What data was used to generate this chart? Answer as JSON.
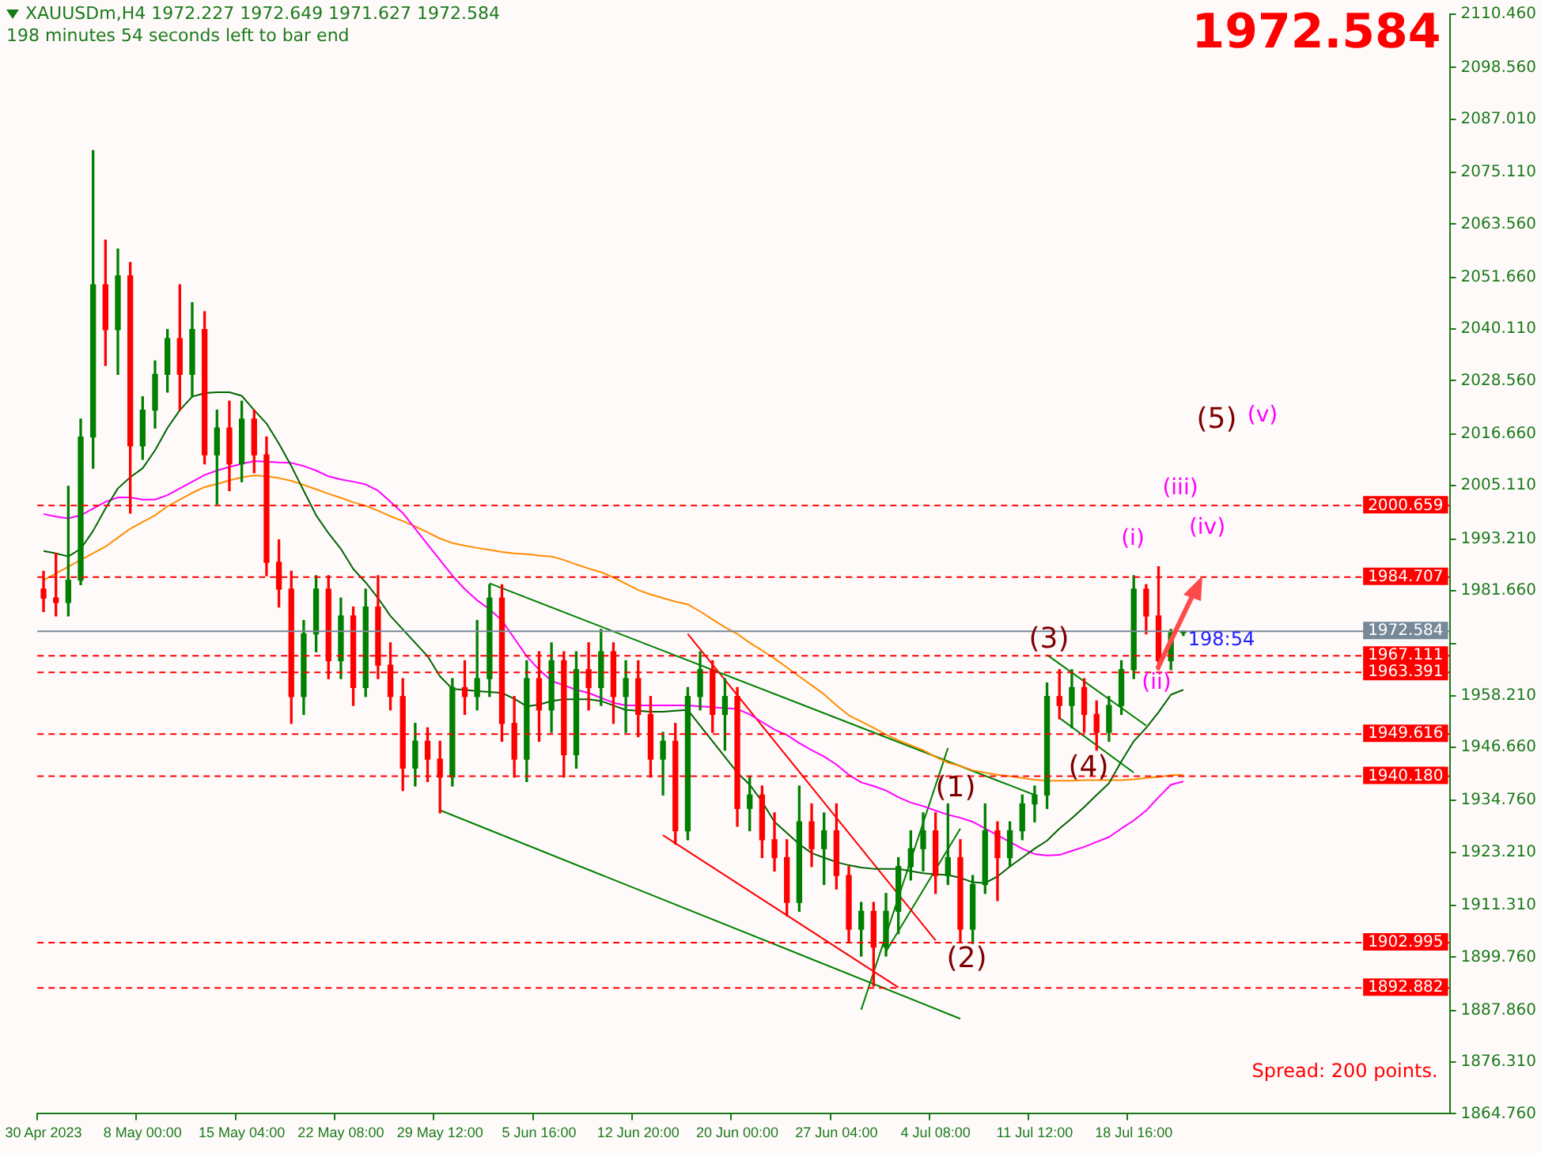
{
  "chart_data": {
    "type": "candlestick",
    "title": "XAUUSDm,H4  1972.227 1972.649 1971.627 1972.584",
    "subtitle": "198 minutes 54 seconds left to bar end",
    "categories": [
      "30 Apr 2023",
      null,
      null,
      null,
      null,
      null,
      null,
      null,
      "8 May 00:00",
      null,
      null,
      null,
      null,
      null,
      null,
      null,
      "15 May 04:00",
      null,
      null,
      null,
      null,
      null,
      null,
      null,
      "22 May 08:00",
      null,
      null,
      null,
      null,
      null,
      null,
      null,
      "29 May 12:00",
      null,
      null,
      null,
      null,
      null,
      null,
      null,
      "5 Jun 16:00",
      null,
      null,
      null,
      null,
      null,
      null,
      null,
      "12 Jun 20:00",
      null,
      null,
      null,
      null,
      null,
      null,
      null,
      "20 Jun 00:00",
      null,
      null,
      null,
      null,
      null,
      null,
      null,
      "27 Jun 04:00",
      null,
      null,
      null,
      null,
      null,
      null,
      null,
      "4 Jul 08:00",
      null,
      null,
      null,
      null,
      null,
      null,
      null,
      "11 Jul 12:00",
      null,
      null,
      null,
      null,
      null,
      null,
      null,
      "18 Jul 16:00",
      null,
      null,
      null,
      null,
      null,
      null,
      null,
      null,
      null,
      null,
      null,
      null,
      null,
      null,
      null,
      null,
      null,
      null,
      null,
      null,
      null,
      null,
      null,
      null,
      null
    ],
    "ohlc": [
      [
        1982,
        1986,
        1977,
        1980
      ],
      [
        1980,
        1990,
        1976,
        1979
      ],
      [
        1979,
        2005,
        1976,
        1984
      ],
      [
        1984,
        2020,
        1983,
        2016
      ],
      [
        2016,
        2080,
        2009,
        2050
      ],
      [
        2050,
        2060,
        2032,
        2040
      ],
      [
        2040,
        2058,
        2030,
        2052
      ],
      [
        2052,
        2055,
        1999,
        2014
      ],
      [
        2014,
        2025,
        2011,
        2022
      ],
      [
        2022,
        2033,
        2018,
        2030
      ],
      [
        2030,
        2040,
        2026,
        2038
      ],
      [
        2038,
        2050,
        2022,
        2030
      ],
      [
        2030,
        2046,
        2025,
        2040
      ],
      [
        2040,
        2044,
        2010,
        2012
      ],
      [
        2012,
        2022,
        2001,
        2018
      ],
      [
        2018,
        2024,
        2004,
        2010
      ],
      [
        2010,
        2024,
        2006,
        2020
      ],
      [
        2020,
        2022,
        2008,
        2012
      ],
      [
        2012,
        2016,
        1985,
        1988
      ],
      [
        1988,
        1993,
        1978,
        1982
      ],
      [
        1982,
        1986,
        1952,
        1958
      ],
      [
        1958,
        1975,
        1954,
        1972
      ],
      [
        1972,
        1985,
        1968,
        1982
      ],
      [
        1982,
        1985,
        1962,
        1966
      ],
      [
        1966,
        1980,
        1962,
        1976
      ],
      [
        1976,
        1978,
        1956,
        1960
      ],
      [
        1960,
        1982,
        1958,
        1978
      ],
      [
        1978,
        1985,
        1962,
        1965
      ],
      [
        1965,
        1970,
        1955,
        1958
      ],
      [
        1958,
        1962,
        1937,
        1942
      ],
      [
        1942,
        1952,
        1938,
        1948
      ],
      [
        1948,
        1951,
        1939,
        1944
      ],
      [
        1944,
        1948,
        1932,
        1940
      ],
      [
        1940,
        1962,
        1938,
        1960
      ],
      [
        1960,
        1966,
        1954,
        1958
      ],
      [
        1958,
        1975,
        1955,
        1962
      ],
      [
        1962,
        1983,
        1958,
        1980
      ],
      [
        1980,
        1983,
        1948,
        1952
      ],
      [
        1952,
        1958,
        1940,
        1944
      ],
      [
        1944,
        1966,
        1939,
        1962
      ],
      [
        1962,
        1968,
        1948,
        1955
      ],
      [
        1955,
        1970,
        1950,
        1966
      ],
      [
        1966,
        1968,
        1940,
        1945
      ],
      [
        1945,
        1968,
        1942,
        1964
      ],
      [
        1964,
        1970,
        1955,
        1960
      ],
      [
        1960,
        1973,
        1956,
        1968
      ],
      [
        1968,
        1970,
        1952,
        1958
      ],
      [
        1958,
        1966,
        1950,
        1962
      ],
      [
        1962,
        1966,
        1949,
        1954
      ],
      [
        1954,
        1958,
        1940,
        1944
      ],
      [
        1944,
        1950,
        1936,
        1948
      ],
      [
        1948,
        1952,
        1925,
        1928
      ],
      [
        1928,
        1960,
        1926,
        1958
      ],
      [
        1958,
        1968,
        1955,
        1964
      ],
      [
        1964,
        1966,
        1950,
        1954
      ],
      [
        1954,
        1962,
        1946,
        1958
      ],
      [
        1958,
        1960,
        1929,
        1933
      ],
      [
        1933,
        1940,
        1928,
        1936
      ],
      [
        1936,
        1938,
        1922,
        1926
      ],
      [
        1926,
        1932,
        1919,
        1922
      ],
      [
        1922,
        1926,
        1909,
        1912
      ],
      [
        1912,
        1938,
        1910,
        1930
      ],
      [
        1930,
        1934,
        1920,
        1924
      ],
      [
        1924,
        1932,
        1916,
        1928
      ],
      [
        1928,
        1934,
        1915,
        1918
      ],
      [
        1918,
        1920,
        1903,
        1906
      ],
      [
        1906,
        1912,
        1900,
        1910
      ],
      [
        1910,
        1912,
        1893.3,
        1902
      ],
      [
        1902,
        1914,
        1900,
        1910
      ],
      [
        1910,
        1922,
        1905,
        1920
      ],
      [
        1920,
        1928,
        1917,
        1924
      ],
      [
        1924,
        1932,
        1919,
        1928
      ],
      [
        1928,
        1932,
        1914,
        1918
      ],
      [
        1918,
        1934,
        1916,
        1922
      ],
      [
        1922,
        1926,
        1903,
        1906
      ],
      [
        1906,
        1918,
        1902.8,
        1916
      ],
      [
        1916,
        1934,
        1914,
        1928
      ],
      [
        1928,
        1930,
        1912.4,
        1922
      ],
      [
        1922,
        1930,
        1920,
        1928
      ],
      [
        1928,
        1936,
        1926,
        1934
      ],
      [
        1934,
        1938,
        1930,
        1936
      ],
      [
        1936,
        1961,
        1933,
        1958
      ],
      [
        1958,
        1964,
        1953,
        1956
      ],
      [
        1956,
        1964,
        1951,
        1960
      ],
      [
        1960,
        1962,
        1950,
        1954
      ],
      [
        1954,
        1957,
        1946,
        1950
      ],
      [
        1950,
        1958,
        1948,
        1956
      ],
      [
        1956,
        1966,
        1954,
        1964
      ],
      [
        1964,
        1985,
        1962,
        1982
      ],
      [
        1982,
        1983,
        1972,
        1976
      ],
      [
        1976,
        1987,
        1964,
        1966
      ],
      [
        1966,
        1973,
        1964,
        1972.227
      ],
      [
        1972.227,
        1972.649,
        1971.627,
        1972.584
      ],
      null,
      null,
      null,
      null,
      null,
      null,
      null,
      null,
      null,
      null,
      null,
      null,
      null,
      null,
      null,
      null,
      null,
      null,
      null,
      null,
      null
    ],
    "colors": [
      "#ff0000",
      "#ff0000",
      "#008000",
      "#008000",
      "#008000",
      "#ff0000",
      "#008000",
      "#ff0000",
      "#008000",
      "#008000",
      "#008000",
      "#ff0000",
      "#008000",
      "#ff0000",
      "#008000",
      "#ff0000",
      "#008000",
      "#ff0000",
      "#ff0000",
      "#ff0000",
      "#ff0000",
      "#008000",
      "#008000",
      "#ff0000",
      "#008000",
      "#ff0000",
      "#008000",
      "#ff0000",
      "#ff0000",
      "#ff0000",
      "#008000",
      "#ff0000",
      "#ff0000",
      "#008000",
      "#ff0000",
      "#008000",
      "#008000",
      "#ff0000",
      "#ff0000",
      "#008000",
      "#ff0000",
      "#008000",
      "#ff0000",
      "#008000",
      "#ff0000",
      "#008000",
      "#ff0000",
      "#008000",
      "#ff0000",
      "#ff0000",
      "#008000",
      "#ff0000",
      "#008000",
      "#008000",
      "#ff0000",
      "#008000",
      "#ff0000",
      "#008000",
      "#ff0000",
      "#ff0000",
      "#ff0000",
      "#008000",
      "#ff0000",
      "#008000",
      "#ff0000",
      "#ff0000",
      "#008000",
      "#ff0000",
      "#008000",
      "#008000",
      "#008000",
      "#008000",
      "#ff0000",
      "#008000",
      "#ff0000",
      "#008000",
      "#008000",
      "#ff0000",
      "#008000",
      "#008000",
      "#008000",
      "#008000",
      "#ff0000",
      "#008000",
      "#ff0000",
      "#ff0000",
      "#008000",
      "#008000",
      "#008000",
      "#ff0000",
      "#ff0000",
      "#008000",
      "#008000",
      null,
      null,
      null,
      null,
      null,
      null,
      null,
      null,
      null,
      null,
      null,
      null,
      null,
      null,
      null,
      null,
      null,
      null,
      null,
      null,
      null
    ],
    "series": [
      {
        "type": "line",
        "color": "#006400",
        "values": [
          1990.5,
          1990,
          1989.3,
          1991,
          1995,
          2000,
          2004.5,
          2007,
          2009,
          2013,
          2018,
          2022,
          2025,
          2025.8,
          2026,
          2026,
          2025.2,
          2022,
          2019,
          2014.5,
          2009.5,
          2004,
          1998.5,
          1994.5,
          1991,
          1986.5,
          1983.5,
          1980,
          1976,
          1973,
          1970,
          1967,
          1962.5,
          1959.7,
          1959.5,
          1959.2,
          1959,
          1958.8,
          1957.5,
          1955.8,
          1956.2,
          1957,
          1957.4,
          1957.4,
          1957.4,
          1957,
          1956,
          1955,
          1954.8,
          1954.6,
          1954.6,
          1954.8,
          1955,
          1951.5,
          1948,
          1944.5,
          1941,
          1938.3,
          1934.5,
          1930,
          1927.5,
          1925,
          1923,
          1922,
          1921,
          1920.3,
          1919.8,
          1919.5,
          1919.5,
          1919.5,
          1919,
          1918.5,
          1918.3,
          1918.1,
          1917.5,
          1916.5,
          1916.3,
          1917.8,
          1920,
          1922,
          1924,
          1925.8,
          1928.5,
          1930.8,
          1933.3,
          1936,
          1938.6,
          1943.5,
          1948,
          1951,
          1954.5,
          1958.4,
          1959.5,
          null,
          null,
          null,
          null,
          null,
          null,
          null,
          null,
          null,
          null,
          null,
          null,
          null,
          null,
          null,
          null,
          null,
          null,
          null,
          null,
          null
        ]
      },
      {
        "type": "line",
        "color": "#ff00ff",
        "values": [
          1998.8,
          1998.2,
          1997.8,
          1998.5,
          2000,
          2001.5,
          2002.5,
          2002.5,
          2002,
          2002,
          2003,
          2004.5,
          2006,
          2007.5,
          2008.5,
          2009.3,
          2010,
          2010.6,
          2010.5,
          2010.3,
          2010.2,
          2009.5,
          2008.5,
          2007.2,
          2006.5,
          2006,
          2005.4,
          2004,
          2001.5,
          1999,
          1995.5,
          1992,
          1988.5,
          1985,
          1982,
          1979.5,
          1977.5,
          1975,
          1971,
          1967,
          1964,
          1961.5,
          1960.5,
          1959.5,
          1958.8,
          1957.7,
          1956.6,
          1956,
          1956,
          1956,
          1956,
          1956,
          1956,
          1955.8,
          1955.6,
          1955.4,
          1955.2,
          1954,
          1952.3,
          1950.6,
          1949.4,
          1947.6,
          1946,
          1944.6,
          1942.8,
          1940.5,
          1938.8,
          1938,
          1937,
          1935.5,
          1934.3,
          1933.5,
          1932.5,
          1931.6,
          1930.9,
          1930,
          1928.5,
          1927,
          1925.5,
          1924,
          1922.8,
          1922.5,
          1922.6,
          1923.5,
          1924.4,
          1925.5,
          1926.6,
          1928.5,
          1930.3,
          1932.5,
          1935.5,
          1938.3,
          1939,
          null,
          null,
          null,
          null,
          null,
          null,
          null,
          null,
          null,
          null,
          null,
          null,
          null,
          null,
          null,
          null,
          null,
          null,
          null,
          null,
          null
        ]
      },
      {
        "type": "line",
        "color": "#ff8c00",
        "values": [
          1984,
          1985.5,
          1987,
          1988.5,
          1990,
          1991.5,
          1993.5,
          1995.5,
          1997,
          1998.5,
          2000.5,
          2002,
          2003.5,
          2004.8,
          2005.5,
          2006.3,
          2007,
          2007.4,
          2007.2,
          2006.8,
          2006.2,
          2005.3,
          2004.3,
          2003.3,
          2002.4,
          2001.4,
          2000.6,
          1999.5,
          1998.3,
          1997.2,
          1996,
          1994.7,
          1993.3,
          1992.3,
          1991.7,
          1991.2,
          1990.8,
          1990.3,
          1990,
          1989.8,
          1989.5,
          1989.3,
          1988.5,
          1987.5,
          1986.6,
          1985.8,
          1984.6,
          1983.2,
          1981.8,
          1980.8,
          1980,
          1979.2,
          1978.6,
          1977,
          1975.2,
          1973.5,
          1972,
          1970,
          1968.3,
          1966.5,
          1964.5,
          1962.5,
          1960.5,
          1958.5,
          1956,
          1953.8,
          1952.4,
          1951,
          1949.5,
          1948.2,
          1947.1,
          1946,
          1944.5,
          1943.2,
          1942.5,
          1941.5,
          1941,
          1940.5,
          1940.2,
          1939.8,
          1939.4,
          1939.2,
          1939.2,
          1939.2,
          1939.3,
          1939.3,
          1939.3,
          1939.3,
          1939.5,
          1939.8,
          1940,
          1940.4,
          1940.5,
          null,
          null,
          null,
          null,
          null,
          null,
          null,
          null,
          null,
          null,
          null,
          null,
          null,
          null,
          null,
          null,
          null,
          null,
          null,
          null,
          null
        ]
      },
      {
        "type": "line",
        "color": "#008000",
        "values": [
          null,
          null,
          null,
          null,
          null,
          null,
          null,
          null,
          null,
          null,
          null,
          null,
          null,
          null,
          null,
          null,
          null,
          null,
          null,
          null,
          null,
          null,
          null,
          null,
          null,
          null,
          null,
          null,
          null,
          null,
          null,
          null,
          null,
          null,
          null,
          null,
          1983.3,
          null,
          null,
          null,
          null,
          null,
          null,
          null,
          null,
          null,
          null,
          null,
          null,
          null,
          null,
          null,
          null,
          null,
          null,
          null,
          null,
          null,
          null,
          null,
          null,
          null,
          null,
          null,
          null,
          null,
          null,
          null,
          null,
          null,
          null,
          null,
          null,
          null,
          null,
          null,
          null,
          null,
          null,
          null,
          1936,
          null,
          null,
          null,
          null,
          null,
          null,
          null,
          null,
          null,
          null,
          null,
          null,
          null,
          null,
          null,
          null,
          null,
          null,
          null,
          null,
          null,
          null,
          null,
          null,
          null,
          null,
          null,
          null,
          null,
          null,
          null,
          null,
          null
        ]
      },
      {
        "type": "line",
        "color": "#008000",
        "values": [
          null,
          null,
          null,
          null,
          null,
          null,
          null,
          null,
          null,
          null,
          null,
          null,
          null,
          null,
          null,
          null,
          null,
          null,
          null,
          null,
          null,
          null,
          null,
          null,
          null,
          null,
          null,
          null,
          null,
          null,
          null,
          null,
          1932.6,
          null,
          null,
          null,
          null,
          null,
          null,
          null,
          null,
          null,
          null,
          null,
          null,
          null,
          null,
          null,
          null,
          null,
          null,
          null,
          null,
          null,
          null,
          null,
          null,
          null,
          null,
          null,
          null,
          null,
          null,
          null,
          null,
          null,
          null,
          null,
          null,
          null,
          null,
          null,
          null,
          null,
          1886,
          null,
          null,
          null,
          null,
          null,
          null,
          null,
          null,
          null,
          null,
          null,
          null,
          null,
          null,
          null,
          null,
          null,
          null,
          null,
          null,
          null,
          null,
          null,
          null,
          null,
          null,
          null,
          null,
          null,
          null,
          null,
          null,
          null,
          null,
          null,
          null,
          null,
          null,
          null
        ]
      },
      {
        "type": "line",
        "color": "#ff0000",
        "values": [
          null,
          null,
          null,
          null,
          null,
          null,
          null,
          null,
          null,
          null,
          null,
          null,
          null,
          null,
          null,
          null,
          null,
          null,
          null,
          null,
          null,
          null,
          null,
          null,
          null,
          null,
          null,
          null,
          null,
          null,
          null,
          null,
          null,
          null,
          null,
          null,
          null,
          null,
          null,
          null,
          null,
          null,
          null,
          null,
          null,
          null,
          null,
          null,
          null,
          null,
          null,
          null,
          1972,
          null,
          null,
          null,
          null,
          null,
          null,
          null,
          null,
          null,
          null,
          null,
          null,
          null,
          null,
          null,
          null,
          null,
          null,
          null,
          1903.5,
          null,
          null,
          null,
          null,
          null,
          null,
          null,
          null,
          null,
          null,
          null,
          null,
          null,
          null,
          null,
          null,
          null,
          null,
          null,
          null,
          null,
          null,
          null,
          null,
          null,
          null,
          null,
          null,
          null,
          null,
          null,
          null,
          null,
          null,
          null,
          null,
          null,
          null,
          null,
          null,
          null
        ]
      },
      {
        "type": "line",
        "color": "#ff0000",
        "values": [
          null,
          null,
          null,
          null,
          null,
          null,
          null,
          null,
          null,
          null,
          null,
          null,
          null,
          null,
          null,
          null,
          null,
          null,
          null,
          null,
          null,
          null,
          null,
          null,
          null,
          null,
          null,
          null,
          null,
          null,
          null,
          null,
          null,
          null,
          null,
          null,
          null,
          null,
          null,
          null,
          null,
          null,
          null,
          null,
          null,
          null,
          null,
          null,
          null,
          null,
          1927,
          null,
          null,
          null,
          null,
          null,
          null,
          null,
          null,
          null,
          null,
          null,
          null,
          null,
          null,
          null,
          null,
          null,
          null,
          1893,
          null,
          null,
          null,
          null,
          null,
          null,
          null,
          null,
          null,
          null,
          null,
          null,
          null,
          null,
          null,
          null,
          null,
          null,
          null,
          null,
          null,
          null,
          null,
          null,
          null,
          null,
          null,
          null,
          null,
          null,
          null,
          null,
          null,
          null,
          null,
          null,
          null,
          null,
          null,
          null,
          null,
          null,
          null,
          null
        ]
      },
      {
        "type": "line",
        "color": "#008000",
        "values": [
          null,
          null,
          null,
          null,
          null,
          null,
          null,
          null,
          null,
          null,
          null,
          null,
          null,
          null,
          null,
          null,
          null,
          null,
          null,
          null,
          null,
          null,
          null,
          null,
          null,
          null,
          null,
          null,
          null,
          null,
          null,
          null,
          null,
          null,
          null,
          null,
          null,
          null,
          null,
          null,
          null,
          null,
          null,
          null,
          null,
          null,
          null,
          null,
          null,
          null,
          null,
          null,
          null,
          null,
          null,
          null,
          null,
          null,
          null,
          null,
          null,
          null,
          null,
          null,
          null,
          null,
          1888,
          null,
          null,
          null,
          null,
          null,
          null,
          1946.5,
          null,
          null,
          null,
          null,
          null,
          null,
          null,
          null,
          null,
          null,
          null,
          null,
          null,
          null,
          null,
          null,
          null,
          null,
          null,
          null,
          null,
          null,
          null,
          null,
          null,
          null,
          null,
          null,
          null,
          null,
          null,
          null,
          null,
          null,
          null,
          null,
          null,
          null,
          null,
          null
        ]
      },
      {
        "type": "line",
        "color": "#008000",
        "values": [
          null,
          null,
          null,
          null,
          null,
          null,
          null,
          null,
          null,
          null,
          null,
          null,
          null,
          null,
          null,
          null,
          null,
          null,
          null,
          null,
          null,
          null,
          null,
          null,
          null,
          null,
          null,
          null,
          null,
          null,
          null,
          null,
          null,
          null,
          null,
          null,
          null,
          null,
          null,
          null,
          null,
          null,
          null,
          null,
          null,
          null,
          null,
          null,
          null,
          null,
          null,
          null,
          null,
          null,
          null,
          null,
          null,
          null,
          null,
          null,
          null,
          null,
          null,
          null,
          null,
          null,
          null,
          null,
          1901,
          null,
          null,
          null,
          null,
          null,
          1928.5,
          null,
          null,
          null,
          null,
          null,
          null,
          null,
          null,
          null,
          null,
          null,
          null,
          null,
          null,
          null,
          null,
          null,
          null,
          null,
          null,
          null,
          null,
          null,
          null,
          null,
          null,
          null,
          null,
          null,
          null,
          null,
          null,
          null,
          null,
          null,
          null,
          null,
          null,
          null
        ]
      },
      {
        "type": "line",
        "color": "#008000",
        "values": [
          null,
          null,
          null,
          null,
          null,
          null,
          null,
          null,
          null,
          null,
          null,
          null,
          null,
          null,
          null,
          null,
          null,
          null,
          null,
          null,
          null,
          null,
          null,
          null,
          null,
          null,
          null,
          null,
          null,
          null,
          null,
          null,
          null,
          null,
          null,
          null,
          null,
          null,
          null,
          null,
          null,
          null,
          null,
          null,
          null,
          null,
          null,
          null,
          null,
          null,
          null,
          null,
          null,
          null,
          null,
          null,
          null,
          null,
          null,
          null,
          null,
          null,
          null,
          null,
          null,
          null,
          null,
          null,
          null,
          null,
          null,
          null,
          null,
          null,
          null,
          null,
          null,
          null,
          null,
          null,
          null,
          1967.3,
          null,
          null,
          null,
          null,
          null,
          null,
          null,
          1951.5,
          null,
          null,
          null,
          null,
          null,
          null,
          null,
          null,
          null,
          null,
          null,
          null,
          null,
          null,
          null,
          null,
          null,
          null,
          null,
          null,
          null,
          null,
          null,
          null
        ]
      },
      {
        "type": "line",
        "color": "#008000",
        "values": [
          null,
          null,
          null,
          null,
          null,
          null,
          null,
          null,
          null,
          null,
          null,
          null,
          null,
          null,
          null,
          null,
          null,
          null,
          null,
          null,
          null,
          null,
          null,
          null,
          null,
          null,
          null,
          null,
          null,
          null,
          null,
          null,
          null,
          null,
          null,
          null,
          null,
          null,
          null,
          null,
          null,
          null,
          null,
          null,
          null,
          null,
          null,
          null,
          null,
          null,
          null,
          null,
          null,
          null,
          null,
          null,
          null,
          null,
          null,
          null,
          null,
          null,
          null,
          null,
          null,
          null,
          null,
          null,
          null,
          null,
          null,
          null,
          null,
          null,
          null,
          null,
          null,
          null,
          null,
          null,
          null,
          null,
          1953.2,
          null,
          null,
          null,
          null,
          null,
          1941,
          null,
          null,
          null,
          null,
          null,
          null,
          null,
          null,
          null,
          null,
          null,
          null,
          null,
          null,
          null,
          null,
          null,
          null,
          null,
          null,
          null,
          null,
          null,
          null,
          null
        ]
      }
    ],
    "ylim": [
      1864.76,
      2110.46
    ],
    "yticks": [
      {
        "value": 2110.46,
        "label": "2110.460"
      },
      {
        "value": 2098.56,
        "label": "2098.560"
      },
      {
        "value": 2087.01,
        "label": "2087.010"
      },
      {
        "value": 2075.11,
        "label": "2075.110"
      },
      {
        "value": 2063.56,
        "label": "2063.560"
      },
      {
        "value": 2051.66,
        "label": "2051.660"
      },
      {
        "value": 2040.11,
        "label": "2040.110"
      },
      {
        "value": 2028.56,
        "label": "2028.560"
      },
      {
        "value": 2016.66,
        "label": "2016.660"
      },
      {
        "value": 2005.11,
        "label": "2005.110"
      },
      {
        "value": 1993.21,
        "label": "1993.210"
      },
      {
        "value": 1981.66,
        "label": "1981.660"
      },
      {
        "value": 1969.76,
        "label": null
      },
      {
        "value": 1958.21,
        "label": "1958.210"
      },
      {
        "value": 1946.66,
        "label": "1946.660"
      },
      {
        "value": 1934.76,
        "label": "1934.760"
      },
      {
        "value": 1923.21,
        "label": "1923.210"
      },
      {
        "value": 1911.31,
        "label": "1911.310"
      },
      {
        "value": 1899.76,
        "label": "1899.760"
      },
      {
        "value": 1887.86,
        "label": "1887.860"
      },
      {
        "value": 1876.31,
        "label": "1876.310"
      },
      {
        "value": 1864.76,
        "label": "1864.760"
      }
    ],
    "ref_lines": [
      {
        "axis": "y",
        "value": 2000.659,
        "label": "2000.659",
        "color": "#ff0000",
        "line_style": "dashed"
      },
      {
        "axis": "y",
        "value": 1984.707,
        "label": "1984.707",
        "color": "#ff0000",
        "line_style": "dashed"
      },
      {
        "axis": "y",
        "value": 1972.584,
        "label": "1972.584",
        "color": "#778899",
        "line_style": "solid"
      },
      {
        "axis": "y",
        "value": 1967.111,
        "label": "1967.111",
        "color": "#ff0000",
        "line_style": "dashed"
      },
      {
        "axis": "y",
        "value": 1963.391,
        "label": "1963.391",
        "color": "#ff0000",
        "line_style": "dashed"
      },
      {
        "axis": "y",
        "value": 1949.616,
        "label": "1949.616",
        "color": "#ff0000",
        "line_style": "dashed"
      },
      {
        "axis": "y",
        "value": 1940.18,
        "label": "1940.180",
        "color": "#ff0000",
        "line_style": "dashed"
      },
      {
        "axis": "y",
        "value": 1902.995,
        "label": "1902.995",
        "color": "#ff0000",
        "line_style": "dashed"
      },
      {
        "axis": "y",
        "value": 1892.882,
        "label": "1892.882",
        "color": "#ff0000",
        "line_style": "dashed"
      }
    ],
    "annotations": [
      "(1)",
      "(2)",
      "(3)",
      "(4)",
      "(5)",
      "(i)",
      "(ii)",
      "(iii)",
      "(iv)",
      "(v)",
      "198:54",
      "Spread: 200 points.",
      "1972.584"
    ],
    "grid": false
  }
}
